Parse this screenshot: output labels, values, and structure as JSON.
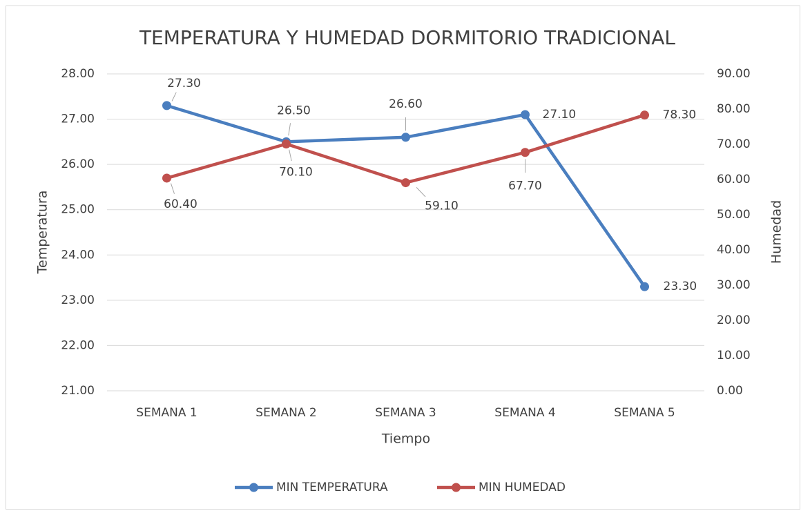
{
  "chart_data": {
    "type": "line",
    "title": "TEMPERATURA Y HUMEDAD DORMITORIO TRADICIONAL",
    "x_label": "Tiempo",
    "y_label": "Temperatura",
    "y2_label": "Humedad",
    "categories": [
      "SEMANA 1",
      "SEMANA 2",
      "SEMANA 3",
      "SEMANA 4",
      "SEMANA 5"
    ],
    "series": [
      {
        "name": "MIN TEMPERATURA",
        "color": "#4a7ebf",
        "values": [
          27.3,
          26.5,
          26.6,
          27.1,
          23.3
        ],
        "value_labels": [
          "27.30",
          "26.50",
          "26.60",
          "27.10",
          "23.30"
        ]
      },
      {
        "name": "MIN HUMEDAD",
        "color": "#c0504d",
        "axis": "y2",
        "values": [
          60.4,
          70.1,
          59.1,
          67.7,
          78.3
        ],
        "value_labels": [
          "60.40",
          "70.10",
          "59.10",
          "67.70",
          "78.30"
        ]
      }
    ],
    "ylim": [
      21,
      28
    ],
    "yticks": [
      {
        "value": 21,
        "label": "21.00"
      },
      {
        "value": 22,
        "label": "22.00"
      },
      {
        "value": 23,
        "label": "23.00"
      },
      {
        "value": 24,
        "label": "24.00"
      },
      {
        "value": 25,
        "label": "25.00"
      },
      {
        "value": 26,
        "label": "26.00"
      },
      {
        "value": 27,
        "label": "27.00"
      },
      {
        "value": 28,
        "label": "28.00"
      }
    ],
    "y2lim": [
      0,
      90
    ],
    "y2ticks": [
      {
        "value": 0,
        "label": "0.00"
      },
      {
        "value": 10,
        "label": "10.00"
      },
      {
        "value": 20,
        "label": "20.00"
      },
      {
        "value": 30,
        "label": "30.00"
      },
      {
        "value": 40,
        "label": "40.00"
      },
      {
        "value": 50,
        "label": "50.00"
      },
      {
        "value": 60,
        "label": "60.00"
      },
      {
        "value": 70,
        "label": "70.00"
      },
      {
        "value": 80,
        "label": "80.00"
      },
      {
        "value": 90,
        "label": "90.00"
      }
    ],
    "grid": true,
    "legend": "bottom"
  }
}
